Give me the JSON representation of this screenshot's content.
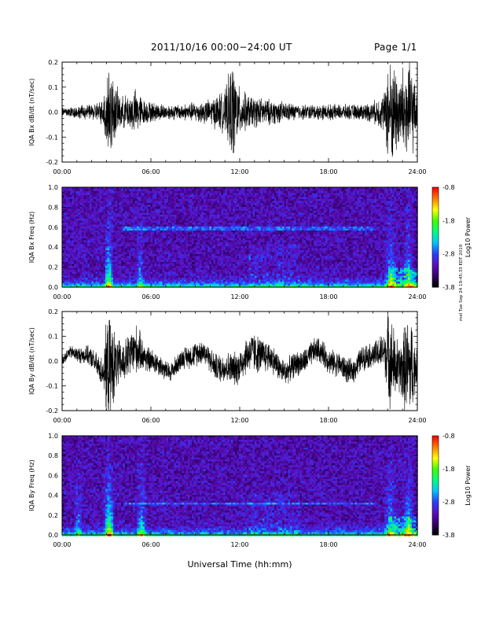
{
  "header": {
    "title": "2011/10/16  00:00−24:00 UT",
    "page": "Page 1/1",
    "xlabel": "Universal Time (hh:mm)",
    "stamp": "mel Tue Sep 24 19:45:33 EDT 2019"
  },
  "colors": {
    "trace": "#000000",
    "colormap": [
      "#000000",
      "#3a0070",
      "#5a10c0",
      "#2a40ff",
      "#00c8ff",
      "#00ff80",
      "#40ff00",
      "#ffff00",
      "#ff8000",
      "#ff0000"
    ]
  },
  "chart_data": [
    {
      "type": "line",
      "ylabel": "IQA Bx dB/dt (nT/sec)",
      "x_ticks": [
        "00:00",
        "06:00",
        "12:00",
        "18:00",
        "24:00"
      ],
      "y_ticks": [
        "-0.2",
        "-0.1",
        "0.0",
        "0.1",
        "0.2"
      ],
      "ylim": [
        -0.2,
        0.2
      ],
      "xlim_hours": [
        0,
        24
      ],
      "series": [
        {
          "x": [
            0,
            1,
            2,
            2.8,
            3.0,
            3.2,
            3.5,
            4,
            4.5,
            5,
            5.5,
            6,
            7,
            8,
            9,
            10,
            10.5,
            11,
            11.5,
            12,
            12.5,
            13,
            14,
            15,
            16,
            17,
            18,
            19,
            20,
            21,
            21.8,
            22,
            22.3,
            22.8,
            23.2,
            23.6,
            24
          ],
          "y_amp": [
            0.02,
            0.025,
            0.03,
            0.05,
            0.2,
            0.2,
            0.12,
            0.06,
            0.07,
            0.09,
            0.05,
            0.04,
            0.03,
            0.03,
            0.04,
            0.05,
            0.07,
            0.08,
            0.2,
            0.09,
            0.07,
            0.06,
            0.05,
            0.04,
            0.03,
            0.03,
            0.03,
            0.03,
            0.03,
            0.04,
            0.08,
            0.2,
            0.2,
            0.15,
            0.2,
            0.2,
            0.05
          ]
        }
      ]
    },
    {
      "type": "heatmap",
      "ylabel": "IQA Bx Freq (Hz)",
      "colorbar_label": "Log10 Power",
      "colorbar_ticks": [
        "-0.8",
        "-1.8",
        "-2.8",
        "-3.8"
      ],
      "clim": [
        -3.8,
        -0.8
      ],
      "x_ticks": [
        "00:00",
        "06:00",
        "12:00",
        "18:00",
        "24:00"
      ],
      "y_ticks": [
        "0.0",
        "0.2",
        "0.4",
        "0.6",
        "0.8",
        "1.0"
      ],
      "ylim": [
        0,
        1.0
      ],
      "xlim_hours": [
        0,
        24
      ]
    },
    {
      "type": "line",
      "ylabel": "IQA By dB/dt (nT/sec)",
      "x_ticks": [
        "00:00",
        "06:00",
        "12:00",
        "18:00",
        "24:00"
      ],
      "y_ticks": [
        "-0.2",
        "-0.1",
        "0.0",
        "0.1",
        "0.2"
      ],
      "ylim": [
        -0.2,
        0.2
      ],
      "xlim_hours": [
        0,
        24
      ],
      "series": [
        {
          "x": [
            0,
            1,
            2,
            2.8,
            3.0,
            3.3,
            3.6,
            4,
            4.5,
            5,
            5.5,
            6,
            7,
            8,
            9,
            10,
            11,
            12,
            13,
            14,
            15,
            16,
            17,
            18,
            19,
            20,
            21,
            21.8,
            22,
            22.4,
            22.8,
            23.3,
            23.6,
            24
          ],
          "y_amp": [
            0.02,
            0.03,
            0.04,
            0.06,
            0.2,
            0.2,
            0.12,
            0.08,
            0.09,
            0.1,
            0.06,
            0.05,
            0.04,
            0.04,
            0.05,
            0.05,
            0.06,
            0.07,
            0.08,
            0.06,
            0.05,
            0.05,
            0.05,
            0.05,
            0.05,
            0.05,
            0.05,
            0.08,
            0.2,
            0.15,
            0.1,
            0.2,
            0.2,
            0.05
          ]
        }
      ]
    },
    {
      "type": "heatmap",
      "ylabel": "IQA By Freq (Hz)",
      "colorbar_label": "Log10 Power",
      "colorbar_ticks": [
        "-0.8",
        "-1.8",
        "-2.8",
        "-3.8"
      ],
      "clim": [
        -3.8,
        -0.8
      ],
      "x_ticks": [
        "00:00",
        "06:00",
        "12:00",
        "18:00",
        "24:00"
      ],
      "y_ticks": [
        "0.0",
        "0.2",
        "0.4",
        "0.6",
        "0.8",
        "1.0"
      ],
      "ylim": [
        0,
        1.0
      ],
      "xlim_hours": [
        0,
        24
      ]
    }
  ]
}
